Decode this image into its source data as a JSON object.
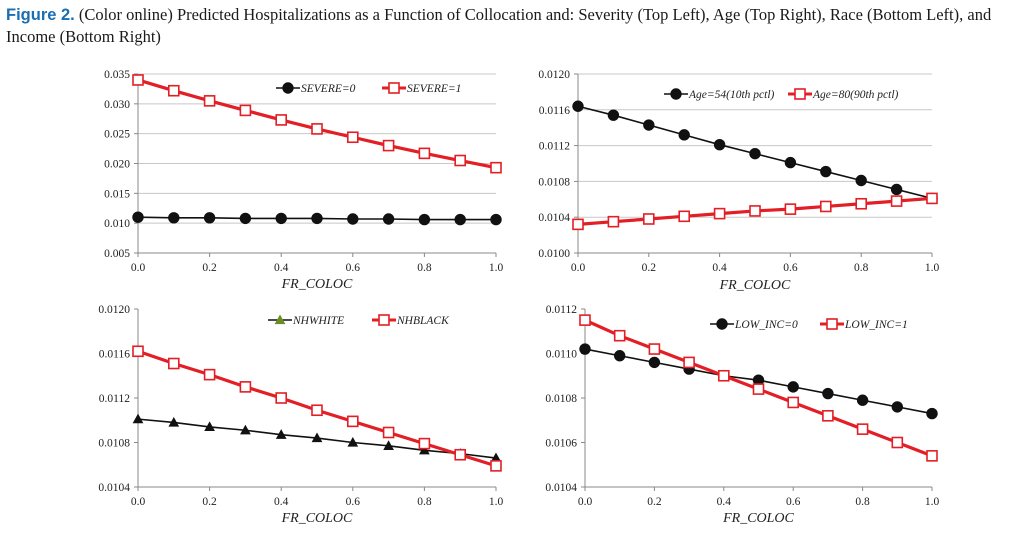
{
  "caption": {
    "label": "Figure 2.",
    "text": "(Color online) Predicted Hospitalizations as a Function of Collocation and: Severity (Top Left), Age (Top Right), Race (Bottom Left), and Income (Bottom Right)"
  },
  "colors": {
    "black_series": "#111111",
    "red_series": "#e31e24",
    "grid": "#c8c8c8"
  },
  "chart_data": [
    {
      "id": "severity",
      "type": "line",
      "xlabel": "FR_COLOC",
      "ylabel": "",
      "x": [
        0.0,
        0.1,
        0.2,
        0.3,
        0.4,
        0.5,
        0.6,
        0.7,
        0.8,
        0.9,
        1.0
      ],
      "xticks": [
        0.0,
        0.2,
        0.4,
        0.6,
        0.8,
        1.0
      ],
      "xtick_labels": [
        "0.0",
        "0.2",
        "0.4",
        "0.6",
        "0.8",
        "1.0"
      ],
      "ylim": [
        0.005,
        0.035
      ],
      "yticks": [
        0.005,
        0.01,
        0.015,
        0.02,
        0.025,
        0.03,
        0.035
      ],
      "ytick_labels": [
        "0.005",
        "0.010",
        "0.015",
        "0.020",
        "0.025",
        "0.030",
        "0.035"
      ],
      "grid": true,
      "legend_position": "top-right",
      "series": [
        {
          "name": "SEVERE=0",
          "marker": "circle",
          "color": "#111111",
          "values": [
            0.011,
            0.0109,
            0.0109,
            0.0108,
            0.0108,
            0.0108,
            0.0107,
            0.0107,
            0.0106,
            0.0106,
            0.0106
          ]
        },
        {
          "name": "SEVERE=1",
          "marker": "square",
          "color": "#e31e24",
          "values": [
            0.034,
            0.0322,
            0.0305,
            0.0289,
            0.0273,
            0.0258,
            0.0244,
            0.023,
            0.0217,
            0.0205,
            0.0193
          ]
        }
      ]
    },
    {
      "id": "age",
      "type": "line",
      "xlabel": "FR_COLOC",
      "ylabel": "",
      "x": [
        0.0,
        0.1,
        0.2,
        0.3,
        0.4,
        0.5,
        0.6,
        0.7,
        0.8,
        0.9,
        1.0
      ],
      "xticks": [
        0.0,
        0.2,
        0.4,
        0.6,
        0.8,
        1.0
      ],
      "xtick_labels": [
        "0.0",
        "0.2",
        "0.4",
        "0.6",
        "0.8",
        "1.0"
      ],
      "ylim": [
        0.01,
        0.012
      ],
      "yticks": [
        0.01,
        0.0104,
        0.0108,
        0.0112,
        0.0116,
        0.012
      ],
      "ytick_labels": [
        "0.0100",
        "0.0104",
        "0.0108",
        "0.0112",
        "0.0116",
        "0.0120"
      ],
      "grid": true,
      "legend_position": "top-right",
      "series": [
        {
          "name": "Age=54(10th pctl)",
          "marker": "circle",
          "color": "#111111",
          "values": [
            0.01164,
            0.01154,
            0.01143,
            0.01132,
            0.01121,
            0.01111,
            0.01101,
            0.01091,
            0.01081,
            0.01071,
            0.01061
          ]
        },
        {
          "name": "Age=80(90th pctl)",
          "marker": "square",
          "color": "#e31e24",
          "values": [
            0.01032,
            0.01035,
            0.01038,
            0.01041,
            0.01044,
            0.01047,
            0.01049,
            0.01052,
            0.01055,
            0.01058,
            0.01061
          ]
        }
      ]
    },
    {
      "id": "race",
      "type": "line",
      "xlabel": "FR_COLOC",
      "ylabel": "",
      "x": [
        0.0,
        0.1,
        0.2,
        0.3,
        0.4,
        0.5,
        0.6,
        0.7,
        0.8,
        0.9,
        1.0
      ],
      "xticks": [
        0.0,
        0.2,
        0.4,
        0.6,
        0.8,
        1.0
      ],
      "xtick_labels": [
        "0.0",
        "0.2",
        "0.4",
        "0.6",
        "0.8",
        "1.0"
      ],
      "ylim": [
        0.0104,
        0.012
      ],
      "yticks": [
        0.0104,
        0.0108,
        0.0112,
        0.0116,
        0.012
      ],
      "ytick_labels": [
        "0.0104",
        "0.0108",
        "0.0112",
        "0.0116",
        "0.0120"
      ],
      "grid": false,
      "legend_position": "top-right",
      "series": [
        {
          "name": "NHWHITE",
          "marker": "triangle",
          "color": "#111111",
          "legend_color": "#6b8e23",
          "values": [
            0.01101,
            0.01098,
            0.01094,
            0.01091,
            0.01087,
            0.01084,
            0.0108,
            0.01077,
            0.01073,
            0.0107,
            0.01066
          ]
        },
        {
          "name": "NHBLACK",
          "marker": "square",
          "color": "#e31e24",
          "values": [
            0.01162,
            0.01151,
            0.01141,
            0.0113,
            0.0112,
            0.01109,
            0.01099,
            0.01089,
            0.01079,
            0.01069,
            0.01059
          ]
        }
      ]
    },
    {
      "id": "income",
      "type": "line",
      "xlabel": "FR_COLOC",
      "ylabel": "",
      "x": [
        0.0,
        0.1,
        0.2,
        0.3,
        0.4,
        0.5,
        0.6,
        0.7,
        0.8,
        0.9,
        1.0
      ],
      "xticks": [
        0.0,
        0.2,
        0.4,
        0.6,
        0.8,
        1.0
      ],
      "xtick_labels": [
        "0.0",
        "0.2",
        "0.4",
        "0.6",
        "0.8",
        "1.0"
      ],
      "ylim": [
        0.0104,
        0.0112
      ],
      "yticks": [
        0.0104,
        0.0106,
        0.0108,
        0.011,
        0.0112
      ],
      "ytick_labels": [
        "0.0104",
        "0.0106",
        "0.0108",
        "0.0110",
        "0.0112"
      ],
      "grid": false,
      "legend_position": "top-right",
      "series": [
        {
          "name": "LOW_INC=0",
          "marker": "circle",
          "color": "#111111",
          "values": [
            0.01102,
            0.01099,
            0.01096,
            0.01093,
            0.0109,
            0.01088,
            0.01085,
            0.01082,
            0.01079,
            0.01076,
            0.01073
          ]
        },
        {
          "name": "LOW_INC=1",
          "marker": "square",
          "color": "#e31e24",
          "values": [
            0.01115,
            0.01108,
            0.01102,
            0.01096,
            0.0109,
            0.01084,
            0.01078,
            0.01072,
            0.01066,
            0.0106,
            0.01054
          ]
        }
      ]
    }
  ]
}
